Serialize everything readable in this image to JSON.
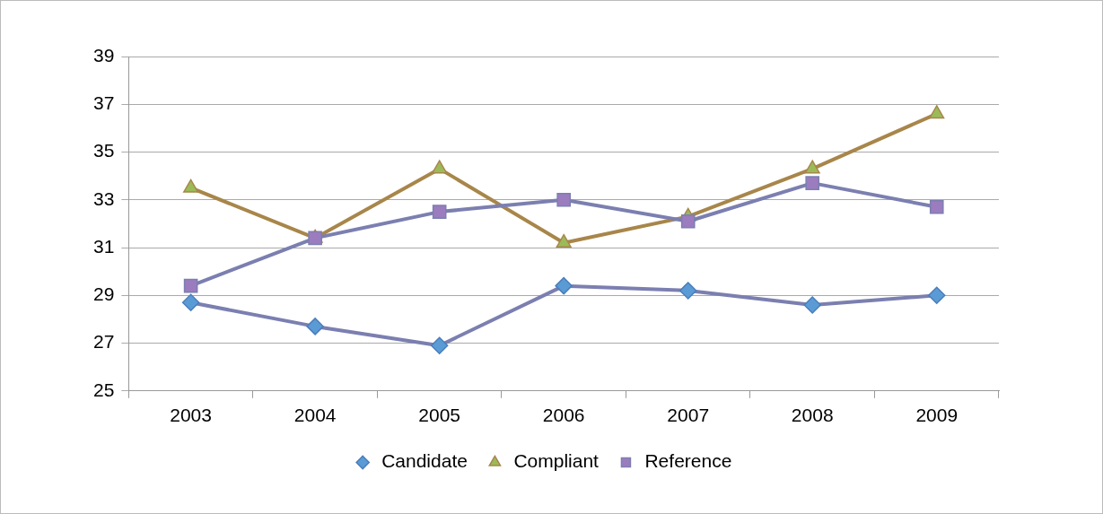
{
  "chart_data": {
    "type": "line",
    "categories": [
      "2003",
      "2004",
      "2005",
      "2006",
      "2007",
      "2008",
      "2009"
    ],
    "series": [
      {
        "name": "Candidate",
        "color": "#7b7fb0",
        "marker": "diamond",
        "values": [
          28.7,
          27.7,
          26.9,
          29.4,
          29.2,
          28.6,
          29.0
        ]
      },
      {
        "name": "Compliant",
        "color": "#a8864a",
        "marker": "triangle",
        "values": [
          33.5,
          31.4,
          34.3,
          31.2,
          32.3,
          34.3,
          36.6
        ]
      },
      {
        "name": "Reference",
        "color": "#7b7fb0",
        "marker": "square",
        "values": [
          29.4,
          31.4,
          32.5,
          33.0,
          32.1,
          33.7,
          32.7
        ]
      }
    ],
    "ylim": [
      25,
      39
    ],
    "yticks": [
      25,
      27,
      29,
      31,
      33,
      35,
      37,
      39
    ],
    "grid": "y",
    "legend": "bottom",
    "line_style": "solid"
  }
}
